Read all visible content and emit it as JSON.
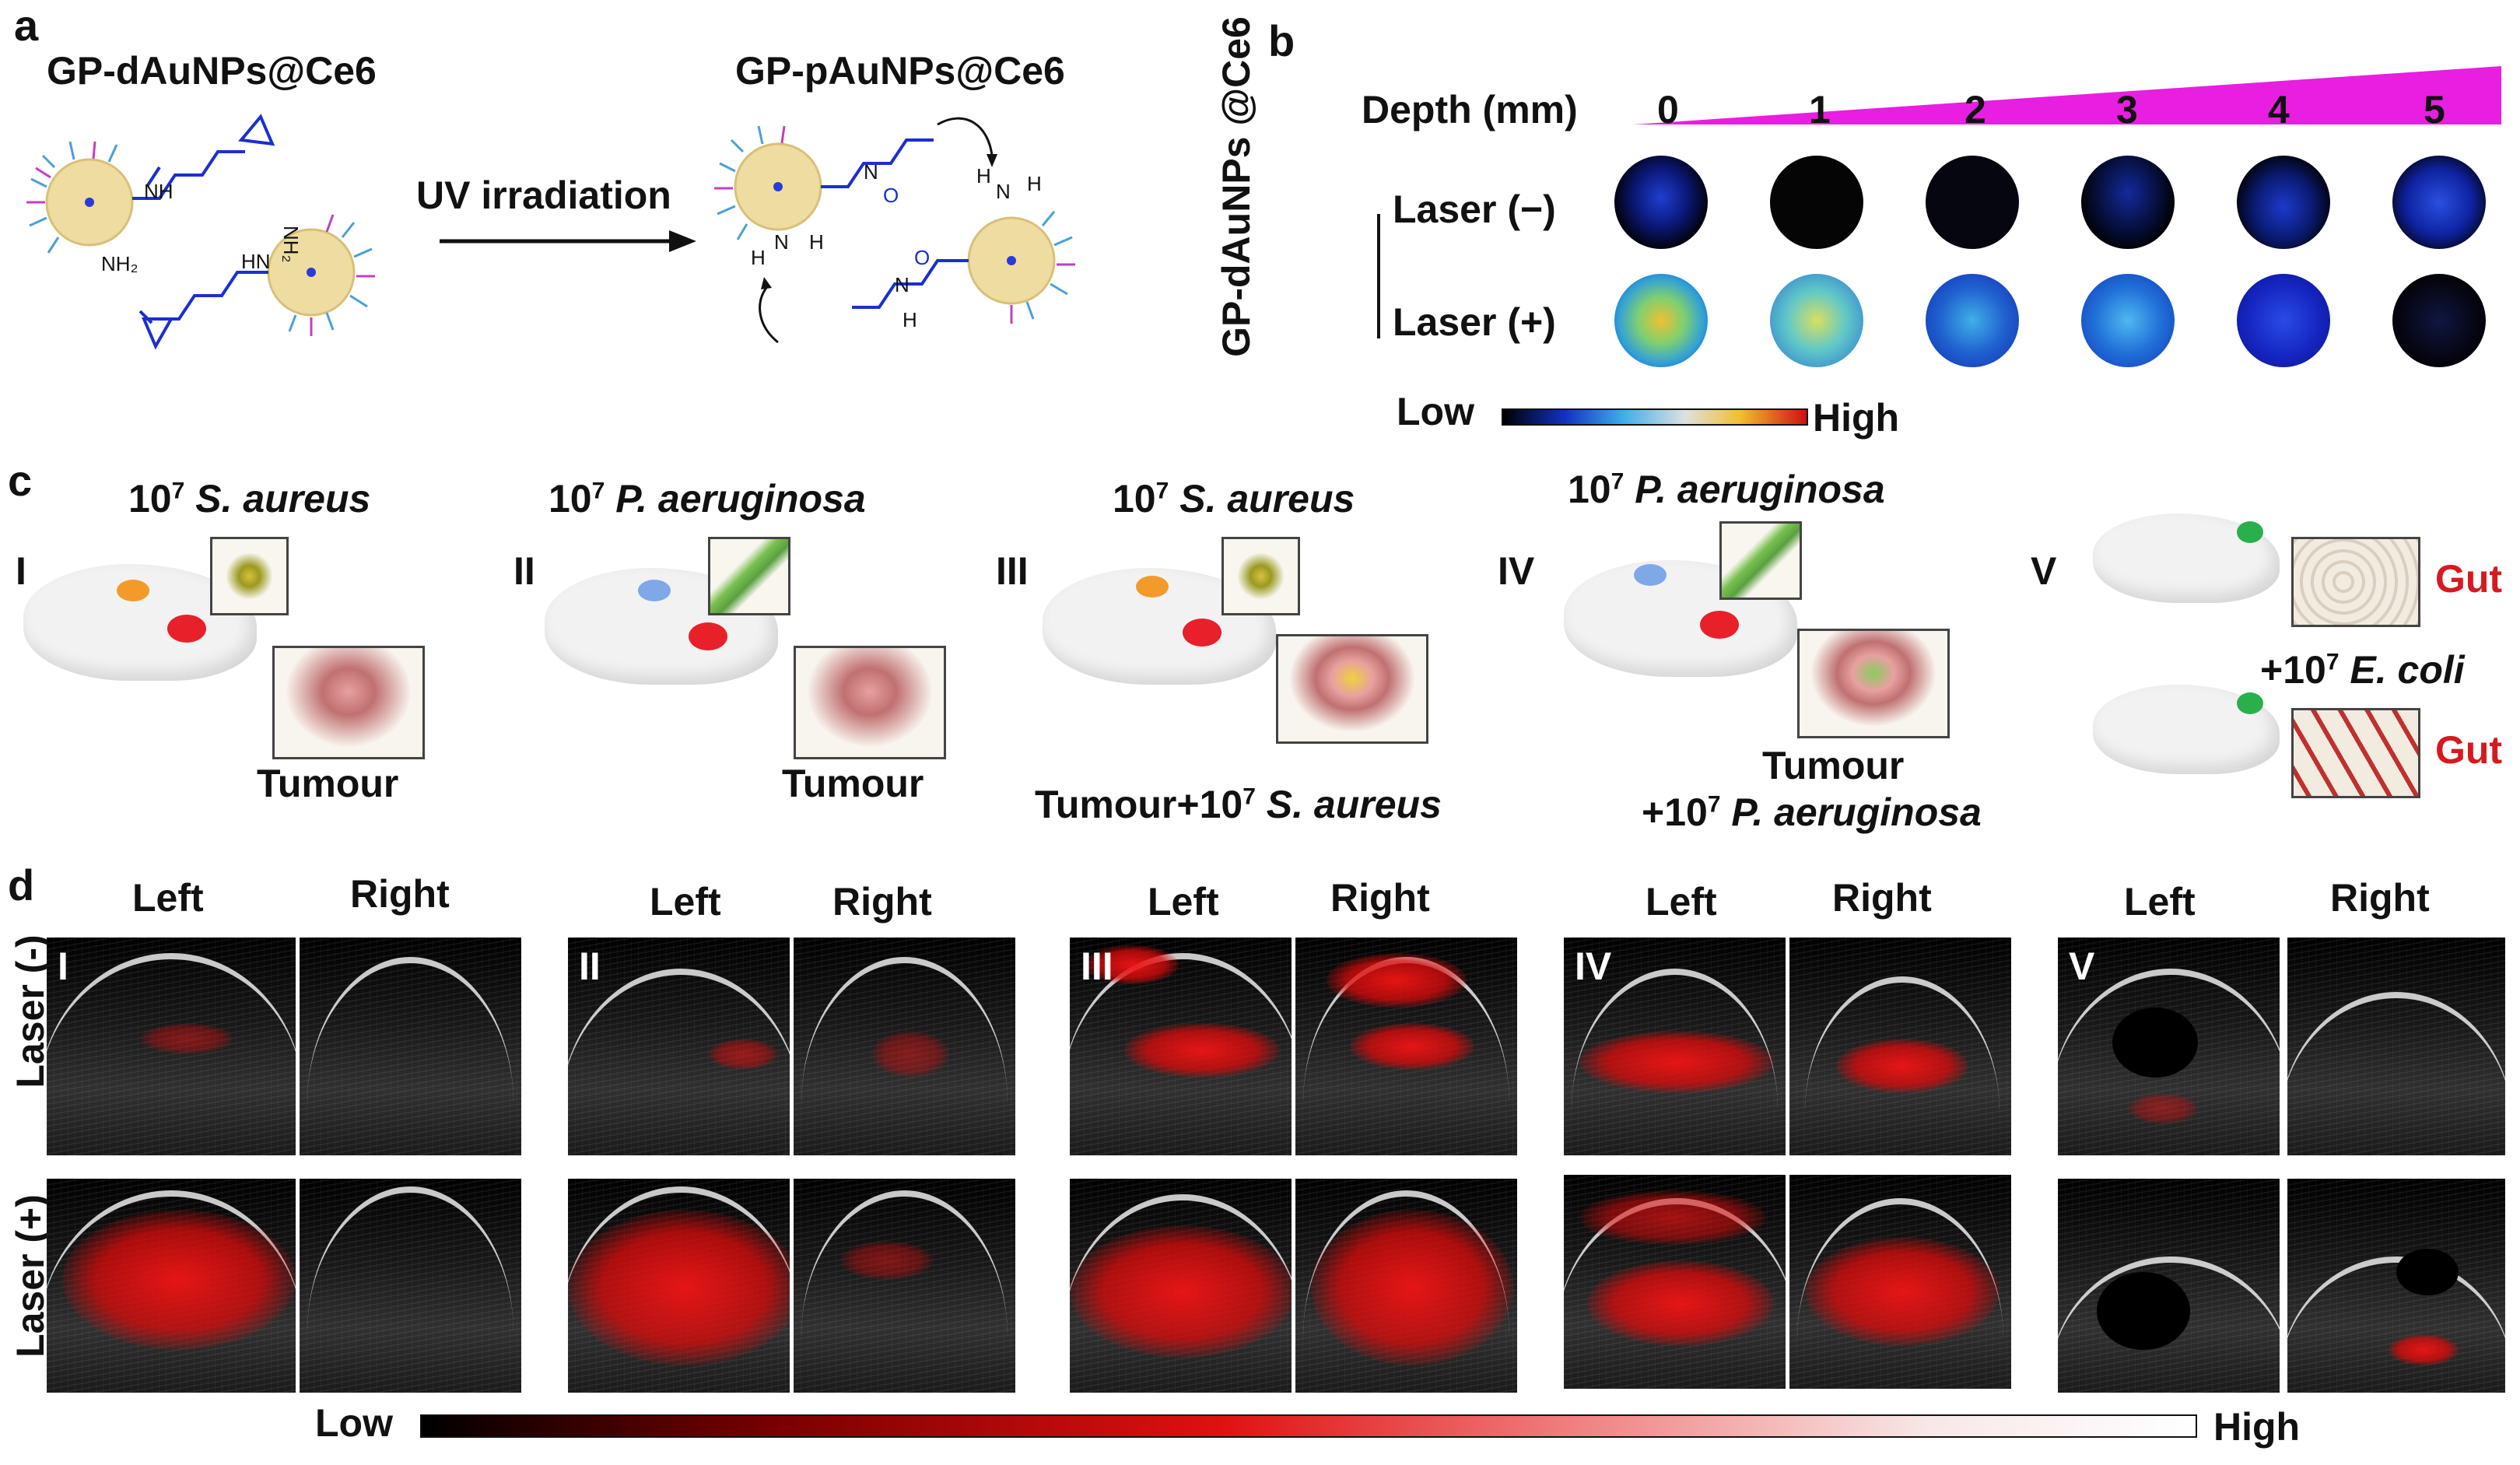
{
  "panels": {
    "a": {
      "letter": "a",
      "left_title": "GP-dAuNPs@Ce6",
      "right_title": "GP-pAuNPs@Ce6",
      "arrow_label": "UV irradiation",
      "chem_labels": [
        "NH",
        "NH2",
        "HN",
        "N",
        "N",
        "H",
        "N",
        "H",
        "N",
        "H",
        "H"
      ]
    },
    "b": {
      "letter": "b",
      "depth_label": "Depth (mm)",
      "depths": [
        "0",
        "1",
        "2",
        "3",
        "4",
        "5"
      ],
      "row_labels": [
        "Laser (−)",
        "Laser (+)"
      ],
      "side_label": "GP-dAuNPs @Ce6",
      "scale_low": "Low",
      "scale_high": "High",
      "colors": {
        "wedge": "#e81ee0"
      }
    },
    "c": {
      "letter": "c",
      "groups": [
        {
          "roman": "I",
          "top_label_pre": "10",
          "top_label_sup": "7",
          "top_label_species": "S. aureus",
          "bottom_label": "Tumour",
          "bottom_label_2": ""
        },
        {
          "roman": "II",
          "top_label_pre": "10",
          "top_label_sup": "7",
          "top_label_species": "P. aeruginosa",
          "bottom_label": "Tumour",
          "bottom_label_2": ""
        },
        {
          "roman": "III",
          "top_label_pre": "10",
          "top_label_sup": "7",
          "top_label_species": "S. aureus",
          "bottom_label": "Tumour+10",
          "bottom_label_sup": "7",
          "bottom_label_species": "S. aureus"
        },
        {
          "roman": "IV",
          "top_label_pre": "10",
          "top_label_sup": "7",
          "top_label_species": "P. aeruginosa",
          "bottom_label": "Tumour",
          "bottom_label_2": "+10",
          "bottom_label_2_sup": "7",
          "bottom_label_2_species": "P. aeruginosa"
        },
        {
          "roman": "V",
          "gut_label": "Gut",
          "mid_label_pre": "+10",
          "mid_label_sup": "7",
          "mid_label_species": "E. coli",
          "gut_label_2": "Gut"
        }
      ]
    },
    "d": {
      "letter": "d",
      "col_left": "Left",
      "col_right": "Right",
      "row_labels": [
        "Laser (-)",
        "Laser (+)"
      ],
      "groups": [
        "I",
        "II",
        "III",
        "IV",
        "V"
      ],
      "scale_low": "Low",
      "scale_high": "High"
    }
  }
}
